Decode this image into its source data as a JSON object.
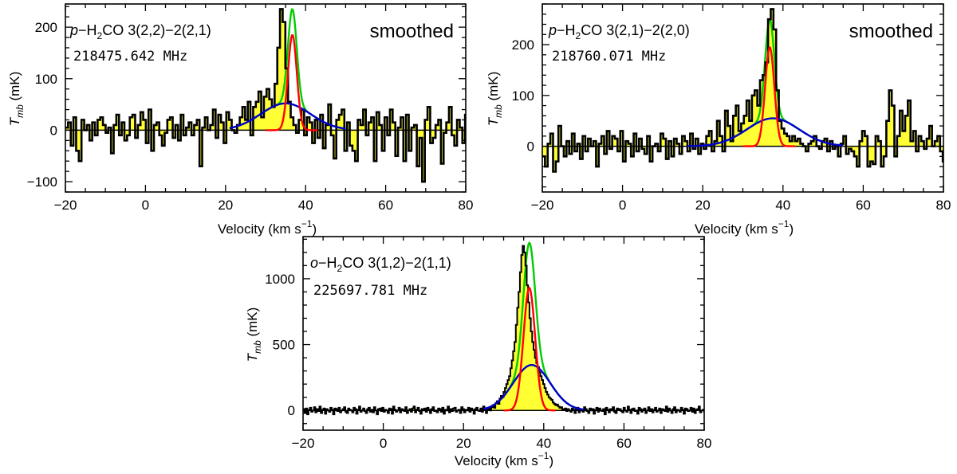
{
  "colors": {
    "fill": "#ffff33",
    "spectrum": "#000000",
    "narrow_fit": "#ff0000",
    "broad_fit": "#0000cc",
    "total_fit": "#00cc00"
  },
  "chart_data": [
    {
      "type": "line",
      "xlabel": "Velocity (km s",
      "xlabel_sup": "−1",
      "xlabel_close": ")",
      "ylabel_main": "T",
      "ylabel_sub": "mb",
      "ylabel_unit": " (mK)",
      "xlim": [
        -20,
        80
      ],
      "ylim": [
        -120,
        245
      ],
      "xticks": [
        -20,
        0,
        20,
        40,
        60,
        80
      ],
      "yticks": [
        -100,
        0,
        100,
        200
      ],
      "tick_labels_x": [
        "−20",
        "0",
        "20",
        "40",
        "60",
        "80"
      ],
      "tick_labels_y": [
        "−100",
        "0",
        "100",
        "200"
      ],
      "species_prefix": "p",
      "species_main": "−H",
      "species_sub": "2",
      "species_rest": "CO 3(2,2)−2(2,1)",
      "frequency": "218475.642 MHz",
      "note": "smoothed",
      "spectrum_start": -20,
      "spectrum_step": 0.67,
      "spectrum": [
        5,
        15,
        -30,
        25,
        -40,
        -60,
        20,
        0,
        10,
        -20,
        15,
        -10,
        20,
        25,
        10,
        -5,
        5,
        -45,
        10,
        30,
        -10,
        15,
        -20,
        -10,
        25,
        30,
        -15,
        10,
        35,
        20,
        -25,
        40,
        -40,
        10,
        15,
        -10,
        -30,
        -5,
        20,
        25,
        -15,
        10,
        -20,
        30,
        -10,
        5,
        15,
        -10,
        10,
        20,
        -70,
        5,
        25,
        0,
        10,
        40,
        -15,
        30,
        15,
        -25,
        35,
        20,
        0,
        -5,
        10,
        25,
        45,
        20,
        55,
        -10,
        45,
        55,
        75,
        25,
        65,
        80,
        60,
        45,
        90,
        160,
        235,
        210,
        120,
        55,
        25,
        10,
        -5,
        20,
        40,
        -10,
        25,
        15,
        -25,
        20,
        -15,
        30,
        -35,
        10,
        50,
        -10,
        -55,
        20,
        30,
        40,
        -40,
        15,
        -30,
        -40,
        -60,
        20,
        10,
        40,
        -10,
        15,
        25,
        -60,
        35,
        10,
        -40,
        25,
        -10,
        40,
        15,
        -50,
        5,
        25,
        -60,
        30,
        -40,
        5,
        10,
        -70,
        -15,
        -100,
        20,
        45,
        -25,
        -15,
        10,
        20,
        -65,
        -5,
        15,
        45,
        -10,
        -30,
        20,
        5,
        -25,
        30,
        -15,
        -5,
        -35,
        -20,
        25,
        -30,
        10,
        -20,
        -10
      ],
      "narrow_fit": {
        "amp": 185,
        "center": 36.7,
        "sigma": 1.1,
        "range": [
          30,
          43
        ]
      },
      "broad_fit": {
        "amp": 52,
        "center": 35.0,
        "sigma": 6.2,
        "range": [
          21,
          50
        ]
      }
    },
    {
      "type": "line",
      "xlabel": "Velocity (km s",
      "xlabel_sup": "−1",
      "xlabel_close": ")",
      "ylabel_main": "T",
      "ylabel_sub": "mb",
      "ylabel_unit": " (mK)",
      "xlim": [
        -20,
        80
      ],
      "ylim": [
        -90,
        280
      ],
      "xticks": [
        -20,
        0,
        20,
        40,
        60,
        80
      ],
      "yticks": [
        0,
        100,
        200
      ],
      "tick_labels_x": [
        "−20",
        "0",
        "20",
        "40",
        "60",
        "80"
      ],
      "tick_labels_y": [
        "0",
        "100",
        "200"
      ],
      "species_prefix": "p",
      "species_main": "−H",
      "species_sub": "2",
      "species_rest": "CO 3(2,1)−2(2,0)",
      "frequency": "218760.071 MHz",
      "note": "smoothed",
      "spectrum_start": -20,
      "spectrum_step": 0.67,
      "spectrum": [
        -20,
        -40,
        5,
        25,
        -50,
        -30,
        40,
        0,
        -20,
        10,
        -15,
        25,
        -10,
        5,
        -25,
        20,
        -10,
        15,
        0,
        10,
        -40,
        5,
        20,
        -15,
        30,
        -5,
        20,
        15,
        -10,
        30,
        -30,
        10,
        5,
        -20,
        25,
        -10,
        15,
        -5,
        -15,
        20,
        -30,
        0,
        5,
        -10,
        25,
        15,
        -25,
        10,
        -20,
        15,
        5,
        -15,
        20,
        10,
        -10,
        25,
        -5,
        15,
        -15,
        5,
        -5,
        20,
        30,
        -10,
        10,
        50,
        20,
        -10,
        70,
        40,
        10,
        60,
        80,
        30,
        45,
        60,
        90,
        50,
        100,
        110,
        80,
        130,
        140,
        165,
        250,
        270,
        230,
        110,
        50,
        35,
        25,
        20,
        10,
        20,
        10,
        15,
        5,
        0,
        -10,
        5,
        10,
        20,
        0,
        -5,
        10,
        15,
        -10,
        10,
        -5,
        0,
        -20,
        5,
        20,
        -15,
        -5,
        -10,
        -20,
        -40,
        10,
        30,
        20,
        -40,
        -30,
        -35,
        20,
        10,
        -40,
        -20,
        50,
        110,
        80,
        -20,
        20,
        70,
        30,
        60,
        90,
        10,
        30,
        -10,
        20,
        10,
        -5,
        15,
        40,
        0,
        10,
        20,
        -10,
        -30,
        50,
        10,
        -10,
        -30,
        -50,
        -80
      ],
      "narrow_fit": {
        "amp": 195,
        "center": 36.7,
        "sigma": 1.15,
        "range": [
          30,
          43
        ]
      },
      "broad_fit": {
        "amp": 55,
        "center": 37.5,
        "sigma": 6.5,
        "range": [
          16,
          55
        ]
      }
    },
    {
      "type": "line",
      "xlabel": "Velocity (km s",
      "xlabel_sup": "−1",
      "xlabel_close": ")",
      "ylabel_main": "T",
      "ylabel_sub": "mb",
      "ylabel_unit": " (mK)",
      "xlim": [
        -20,
        80
      ],
      "ylim": [
        -150,
        1320
      ],
      "xticks": [
        -20,
        0,
        20,
        40,
        60,
        80
      ],
      "yticks": [
        0,
        500,
        1000
      ],
      "tick_labels_x": [
        "−20",
        "0",
        "20",
        "40",
        "60",
        "80"
      ],
      "tick_labels_y": [
        "0",
        "500",
        "1000"
      ],
      "species_prefix": "o",
      "species_main": "−H",
      "species_sub": "2",
      "species_rest": "CO 3(1,2)−2(1,1)",
      "frequency": "225697.781 MHz",
      "note": "",
      "spectrum_start": -20,
      "spectrum_step": 0.34,
      "spectrum": [
        10,
        -20,
        15,
        -30,
        5,
        20,
        -10,
        0,
        25,
        -15,
        10,
        -5,
        30,
        -20,
        5,
        15,
        -25,
        10,
        0,
        -10,
        20,
        5,
        -30,
        15,
        10,
        -5,
        20,
        -15,
        0,
        10,
        25,
        -10,
        -20,
        15,
        5,
        0,
        -15,
        20,
        10,
        -25,
        5,
        30,
        -10,
        0,
        15,
        -5,
        -20,
        10,
        20,
        -10,
        5,
        -15,
        25,
        0,
        -30,
        10,
        15,
        -5,
        20,
        -10,
        5,
        0,
        -20,
        15,
        10,
        -25,
        30,
        5,
        -10,
        0,
        20,
        -15,
        10,
        5,
        -5,
        25,
        -20,
        0,
        10,
        -10,
        15,
        30,
        -15,
        5,
        20,
        -5,
        -25,
        10,
        0,
        15,
        -10,
        20,
        5,
        -20,
        10,
        25,
        -5,
        0,
        -15,
        15,
        10,
        -10,
        20,
        -25,
        5,
        0,
        30,
        -15,
        10,
        -5,
        15,
        20,
        -10,
        0,
        5,
        -20,
        25,
        10,
        -15,
        5,
        0,
        20,
        -10,
        15,
        5,
        -25,
        10,
        20,
        0,
        -5,
        15,
        -10,
        30,
        5,
        -20,
        10,
        15,
        0,
        25,
        40,
        20,
        55,
        70,
        50,
        90,
        110,
        100,
        140,
        170,
        200,
        230,
        260,
        320,
        380,
        450,
        520,
        650,
        780,
        900,
        1050,
        1180,
        1250,
        1200,
        1100,
        950,
        820,
        700,
        600,
        520,
        460,
        400,
        360,
        330,
        290,
        260,
        230,
        200,
        170,
        140,
        120,
        100,
        90,
        80,
        60,
        50,
        40,
        45,
        30,
        20,
        25,
        10,
        5,
        15,
        -5,
        10,
        0,
        -10,
        15,
        5,
        -20,
        10,
        20,
        -15,
        5,
        0,
        -10,
        25,
        10,
        -5,
        -20,
        15,
        0,
        10,
        -25,
        5,
        20,
        -10,
        15,
        0,
        -5,
        10,
        -30,
        20,
        5,
        -15,
        10,
        0,
        25,
        -10,
        -20,
        15,
        5,
        10,
        -5,
        -15,
        20,
        0,
        -10,
        30,
        5,
        -20,
        10,
        15,
        -5,
        0,
        -25,
        20,
        10,
        -10,
        5,
        15,
        -20,
        0,
        25,
        -5,
        10,
        -15,
        5,
        20,
        -10,
        0,
        15,
        -20,
        10,
        5,
        -5,
        30,
        -10,
        15,
        0,
        -20,
        10,
        25,
        -15,
        5,
        0,
        -10,
        20,
        5,
        -25,
        15,
        10,
        -5,
        0,
        20,
        -10,
        15,
        -20,
        5,
        10,
        30,
        -15,
        0,
        5,
        -10,
        20
      ],
      "narrow_fit": {
        "amp": 930,
        "center": 36.4,
        "sigma": 1.45,
        "range": [
          30,
          43
        ]
      },
      "broad_fit": {
        "amp": 345,
        "center": 37.0,
        "sigma": 4.6,
        "range": [
          25,
          50
        ]
      }
    }
  ]
}
